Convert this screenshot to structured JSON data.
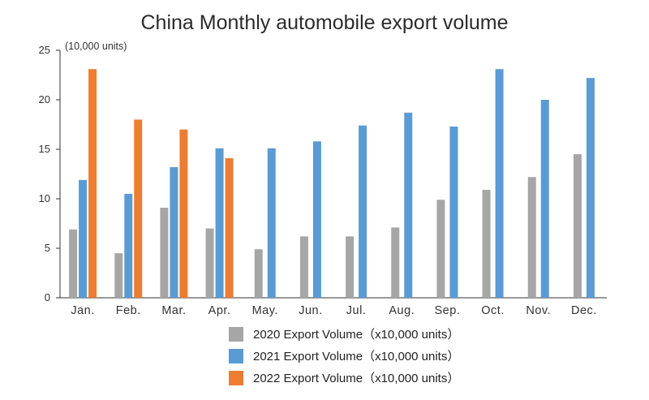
{
  "chart_data": {
    "type": "bar",
    "title": "China Monthly automobile export volume",
    "ylabel": "(10,000 units)",
    "xlabel": "",
    "ylim": [
      0,
      25
    ],
    "yticks": [
      0,
      5,
      10,
      15,
      20,
      25
    ],
    "categories": [
      "Jan.",
      "Feb.",
      "Mar.",
      "Apr.",
      "May.",
      "Jun.",
      "Jul.",
      "Aug.",
      "Sep.",
      "Oct.",
      "Nov.",
      "Dec."
    ],
    "series": [
      {
        "name": "2020 Export Volume（x10,000 units）",
        "color": "#a6a6a6",
        "values": [
          6.9,
          4.5,
          9.1,
          7.0,
          4.9,
          6.2,
          6.2,
          7.1,
          9.9,
          10.9,
          12.2,
          14.5
        ]
      },
      {
        "name": "2021 Export Volume（x10,000 units）",
        "color": "#5b9bd5",
        "values": [
          11.9,
          10.5,
          13.2,
          15.1,
          15.1,
          15.8,
          17.4,
          18.7,
          17.3,
          23.1,
          20.0,
          22.2
        ]
      },
      {
        "name": "2022 Export Volume（x10,000 units）",
        "color": "#ed7d31",
        "values": [
          23.1,
          18.0,
          17.0,
          14.1,
          null,
          null,
          null,
          null,
          null,
          null,
          null,
          null
        ]
      }
    ],
    "legend": "bottom-center",
    "grid": false
  }
}
